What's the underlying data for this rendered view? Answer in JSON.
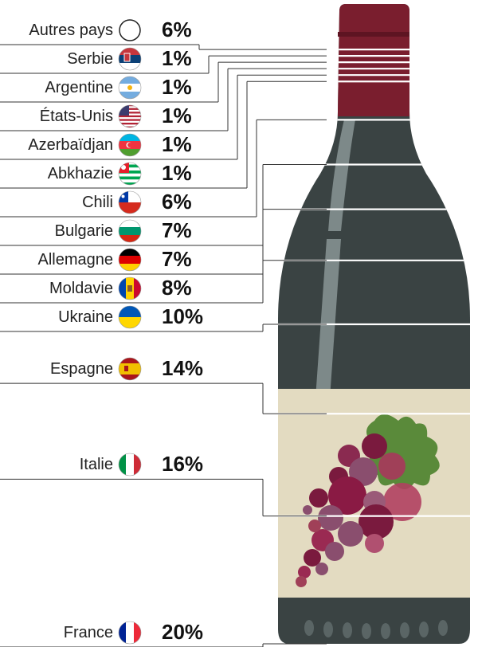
{
  "chart_data": {
    "type": "bar",
    "title": "",
    "categories": [
      "Autres pays",
      "Serbie",
      "Argentine",
      "États-Unis",
      "Azerbaïdjan",
      "Abkhazie",
      "Chili",
      "Bulgarie",
      "Allemagne",
      "Moldavie",
      "Ukraine",
      "Espagne",
      "Italie",
      "France"
    ],
    "values": [
      6,
      1,
      1,
      1,
      1,
      1,
      6,
      7,
      7,
      8,
      10,
      14,
      16,
      20
    ],
    "value_labels": [
      "6%",
      "1%",
      "1%",
      "1%",
      "1%",
      "1%",
      "6%",
      "7%",
      "7%",
      "8%",
      "10%",
      "14%",
      "16%",
      "20%"
    ],
    "unit": "%",
    "flag_icons": [
      "blank-circle-icon",
      "serbia-flag-icon",
      "argentina-flag-icon",
      "usa-flag-icon",
      "azerbaijan-flag-icon",
      "abkhazia-flag-icon",
      "chile-flag-icon",
      "bulgaria-flag-icon",
      "germany-flag-icon",
      "moldova-flag-icon",
      "ukraine-flag-icon",
      "spain-flag-icon",
      "italy-flag-icon",
      "france-flag-icon"
    ]
  },
  "colors": {
    "bottle_body": "#3a4343",
    "bottle_cap": "#7a1e2e",
    "label_paper": "#e3dbc1",
    "grape_dark": "#7a1a3e",
    "grape_mid": "#8a4e6e",
    "leaf": "#5a8a3a",
    "divider": "#ffffff",
    "leader_line": "#333333"
  }
}
